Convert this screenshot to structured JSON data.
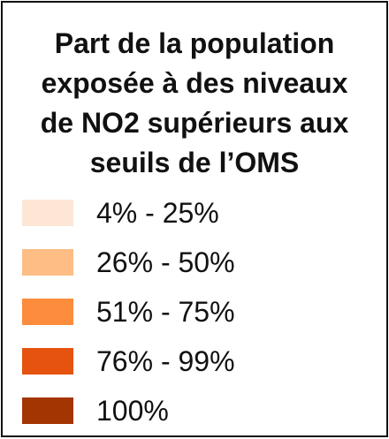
{
  "legend": {
    "title_lines": [
      "Part de la population",
      "exposée à des niveaux",
      "de NO2 supérieurs aux",
      "seuils de l’OMS"
    ],
    "items": [
      {
        "label": "4% - 25%",
        "color": "#fde6d6"
      },
      {
        "label": "26% - 50%",
        "color": "#fdbd85"
      },
      {
        "label": "51% - 75%",
        "color": "#fd8c3d"
      },
      {
        "label": "76% - 99%",
        "color": "#e5530f"
      },
      {
        "label": "100%",
        "color": "#a33503"
      }
    ]
  }
}
